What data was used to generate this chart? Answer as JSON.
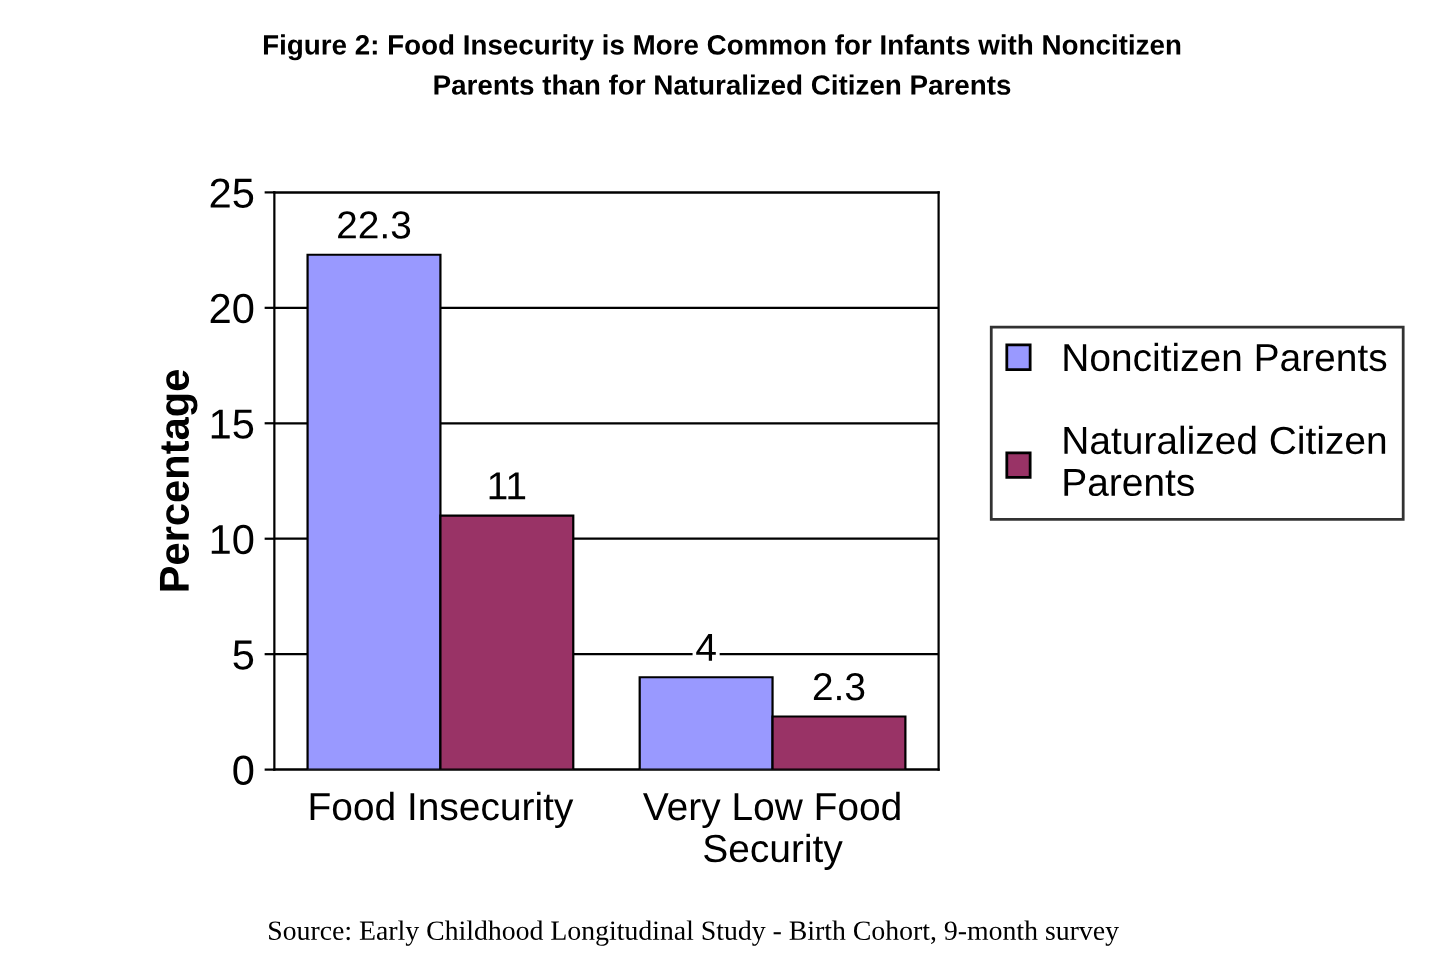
{
  "chart_data": {
    "type": "bar",
    "title": "Figure 2: Food Insecurity is More Common for Infants with Noncitizen Parents than for Naturalized Citizen Parents",
    "categories": [
      "Food Insecurity",
      "Very Low Food Security"
    ],
    "series": [
      {
        "name": "Noncitizen Parents",
        "color": "#9999ff",
        "values": [
          22.3,
          4
        ]
      },
      {
        "name": "Naturalized Citizen Parents",
        "color": "#993366",
        "values": [
          11,
          2.3
        ]
      }
    ],
    "ylabel": "Percentage",
    "ylim": [
      0,
      25
    ],
    "yticks": [
      0,
      5,
      10,
      15,
      20,
      25
    ],
    "grid": "y",
    "legend": "right",
    "data_labels": true,
    "annotations": [
      "Source: Early Childhood Longitudinal Study - Birth Cohort, 9-month survey"
    ]
  }
}
